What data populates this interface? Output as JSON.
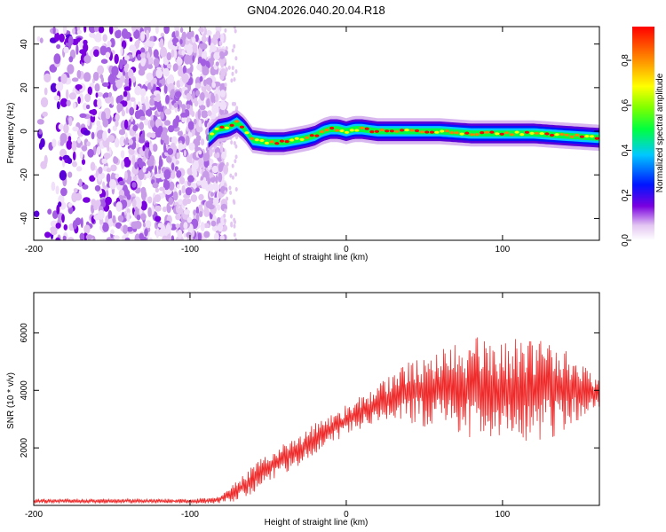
{
  "title": "GN04.2026.040.20.04.R18",
  "chart_data": [
    {
      "type": "heatmap",
      "name": "spectrogram",
      "xlabel": "Height of straight line (km)",
      "ylabel": "Frequency (Hz)",
      "xlim": [
        -200,
        162
      ],
      "ylim": [
        -50,
        48
      ],
      "xticks": [
        -200,
        -100,
        0,
        100
      ],
      "yticks": [
        40,
        20,
        0,
        -20,
        -40
      ],
      "noise_region_x": [
        -200,
        -85
      ],
      "ridge": {
        "x": [
          -88,
          -82,
          -75,
          -70,
          -65,
          -60,
          -50,
          -40,
          -32,
          -25,
          -20,
          -15,
          -10,
          -5,
          0,
          5,
          10,
          20,
          40,
          60,
          80,
          100,
          120,
          140,
          162
        ],
        "freq": [
          -3,
          1,
          2,
          4,
          1,
          -4,
          -5,
          -5,
          -4,
          -3,
          -2,
          0,
          1,
          1,
          0,
          1,
          1,
          0,
          0,
          0,
          -1,
          -1,
          -1,
          -2,
          -3
        ]
      },
      "colorbar": {
        "label": "Normalized spectral amplitude",
        "range": [
          0.0,
          0.95
        ],
        "ticks": [
          "0.0",
          "0.2",
          "0.4",
          "0.6",
          "0.8"
        ]
      }
    },
    {
      "type": "line",
      "name": "snr",
      "xlabel": "Height of straight line (km)",
      "ylabel": "SNR (10 * v/v)",
      "xlim": [
        -200,
        162
      ],
      "ylim": [
        0,
        7400
      ],
      "xticks": [
        -200,
        -100,
        0,
        100
      ],
      "yticks": [
        2000,
        4000,
        6000
      ],
      "color": "#ee2a2a",
      "envelope": {
        "x": [
          -200,
          -100,
          -85,
          -75,
          -65,
          -55,
          -45,
          -35,
          -25,
          -15,
          -5,
          5,
          15,
          25,
          35,
          45,
          55,
          65,
          75,
          85,
          95,
          105,
          115,
          125,
          135,
          145,
          162
        ],
        "mean": [
          150,
          150,
          170,
          330,
          700,
          1100,
          1500,
          1800,
          2100,
          2500,
          2800,
          3100,
          3400,
          3700,
          3900,
          4000,
          4000,
          4100,
          4000,
          4100,
          4000,
          4000,
          4000,
          4100,
          4000,
          4000,
          3900
        ],
        "amp": [
          80,
          80,
          120,
          250,
          450,
          500,
          550,
          550,
          550,
          550,
          550,
          550,
          600,
          700,
          900,
          1200,
          1400,
          1600,
          1700,
          1800,
          1800,
          1800,
          1800,
          1800,
          1600,
          1200,
          500
        ]
      }
    }
  ]
}
